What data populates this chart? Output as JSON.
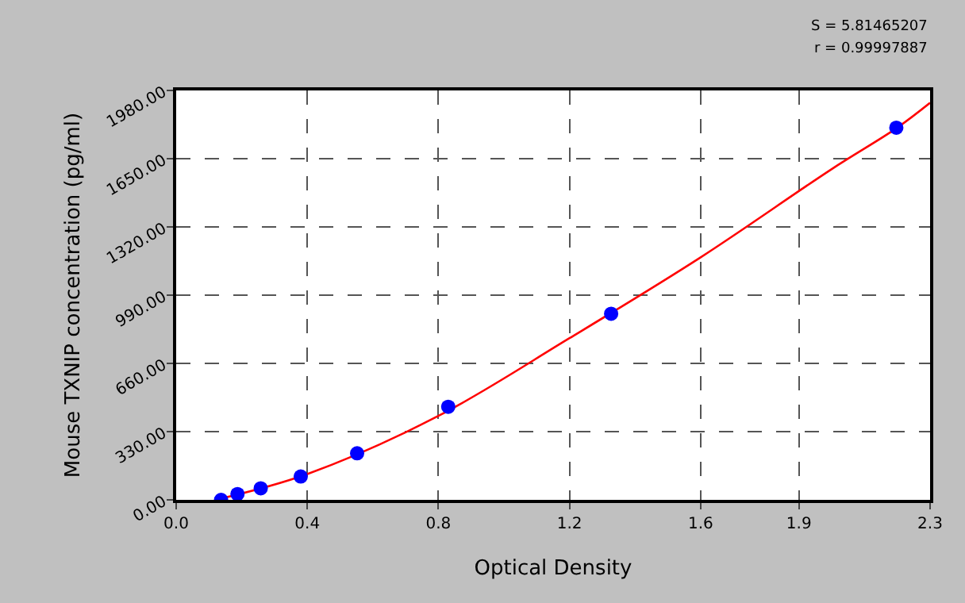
{
  "chart_data": {
    "type": "scatter",
    "xlabel": "Optical Density",
    "ylabel": "Mouse TXNIP concentration (pg/ml)",
    "annotations": [
      "S = 5.81465207",
      "r = 0.99997887"
    ],
    "series": [
      {
        "color": "#0000ff",
        "marker": "circle",
        "x": [
          0.137,
          0.187,
          0.258,
          0.38,
          0.552,
          0.83,
          1.327,
          2.197
        ],
        "values": [
          0,
          28,
          56,
          113,
          225,
          450,
          900,
          1800
        ]
      },
      {
        "type": "line",
        "color": "#ff0000",
        "marker": "none",
        "line_style": "solid",
        "x": [
          0.12,
          0.4,
          0.8,
          1.2,
          1.6,
          2.0,
          2.2,
          2.3
        ],
        "values": [
          0,
          125,
          406,
          782,
          1173,
          1600,
          1800,
          1920
        ]
      }
    ],
    "xlim": [
      0,
      2.3
    ],
    "ylim": [
      0,
      1980
    ],
    "xticks": [
      {
        "value": 0,
        "label": "0.0"
      },
      {
        "value": 0.4,
        "label": "0.4"
      },
      {
        "value": 0.8,
        "label": "0.8"
      },
      {
        "value": 1.2,
        "label": "1.2"
      },
      {
        "value": 1.6,
        "label": "1.6"
      },
      {
        "value": 1.9,
        "label": "1.9"
      },
      {
        "value": 2.3,
        "label": "2.3"
      }
    ],
    "yticks": [
      {
        "value": 0,
        "label": "0.00"
      },
      {
        "value": 330,
        "label": "330.00"
      },
      {
        "value": 660,
        "label": "660.00"
      },
      {
        "value": 990,
        "label": "990.00"
      },
      {
        "value": 1320,
        "label": "1320.00"
      },
      {
        "value": 1650,
        "label": "1650.00"
      },
      {
        "value": 1980,
        "label": "1980.00"
      }
    ],
    "grid": true
  }
}
